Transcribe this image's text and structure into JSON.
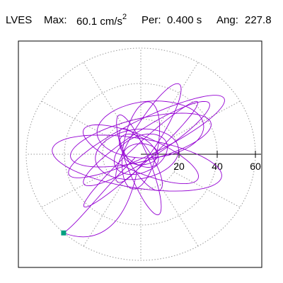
{
  "header": {
    "station": "LVES",
    "max_label": "Max:",
    "max_value": "60.1 cm/s",
    "max_exp": "2",
    "per_label": "Per:",
    "per_value": "0.400 s",
    "ang_label": "Ang:",
    "ang_value": "227.8"
  },
  "colors": {
    "trace": "#9400d3",
    "end_marker": "#00a080",
    "grid": "#999999",
    "axis": "#000000"
  },
  "chart_data": {
    "type": "scatter",
    "style": "polar particle-motion orbit",
    "r_range": [
      0,
      60
    ],
    "r_ticks": [
      20,
      40,
      60
    ],
    "tick_labels": [
      "20",
      "40",
      "60"
    ],
    "angular_gridlines_deg": [
      0,
      30,
      60,
      90,
      120,
      150,
      180,
      210,
      240,
      270,
      300,
      330
    ],
    "grid": true,
    "max_amplitude": 60.1,
    "max_angle_deg": 227.8,
    "end_point": {
      "x": -40.4,
      "y": -44.5
    },
    "orbits": [
      {
        "a": 40,
        "b": 8,
        "rot_deg": 35,
        "cx": 3,
        "cy": 6
      },
      {
        "a": 33,
        "b": 10,
        "rot_deg": -25,
        "cx": 0,
        "cy": 0
      },
      {
        "a": 38,
        "b": 12,
        "rot_deg": 15,
        "cx": 0,
        "cy": 8
      },
      {
        "a": 46,
        "b": 10,
        "rot_deg": 28,
        "cx": 3,
        "cy": 10
      },
      {
        "a": 45,
        "b": 14,
        "rot_deg": -10,
        "cx": -2,
        "cy": -5
      },
      {
        "a": 25,
        "b": 9,
        "rot_deg": 80,
        "cx": 0,
        "cy": 5
      },
      {
        "a": 32,
        "b": 7,
        "rot_deg": 60,
        "cx": 4,
        "cy": 12
      },
      {
        "a": 22,
        "b": 14,
        "rot_deg": 10,
        "cx": -2,
        "cy": 0
      },
      {
        "a": 20,
        "b": 6,
        "rot_deg": 120,
        "cx": 0,
        "cy": -3
      },
      {
        "a": 30,
        "b": 6,
        "rot_deg": -70,
        "cx": -1,
        "cy": -6
      },
      {
        "a": 42,
        "b": 5,
        "rot_deg": 45,
        "cx": 0,
        "cy": 0
      },
      {
        "a": 15,
        "b": 10,
        "rot_deg": 30,
        "cx": 0,
        "cy": 0
      },
      {
        "a": 12,
        "b": 7,
        "rot_deg": -40,
        "cx": -1,
        "cy": 2
      },
      {
        "a": 9,
        "b": 6,
        "rot_deg": 0,
        "cx": 0,
        "cy": 0
      },
      {
        "a": 28,
        "b": 16,
        "rot_deg": 5,
        "cx": 5,
        "cy": 14
      }
    ]
  }
}
